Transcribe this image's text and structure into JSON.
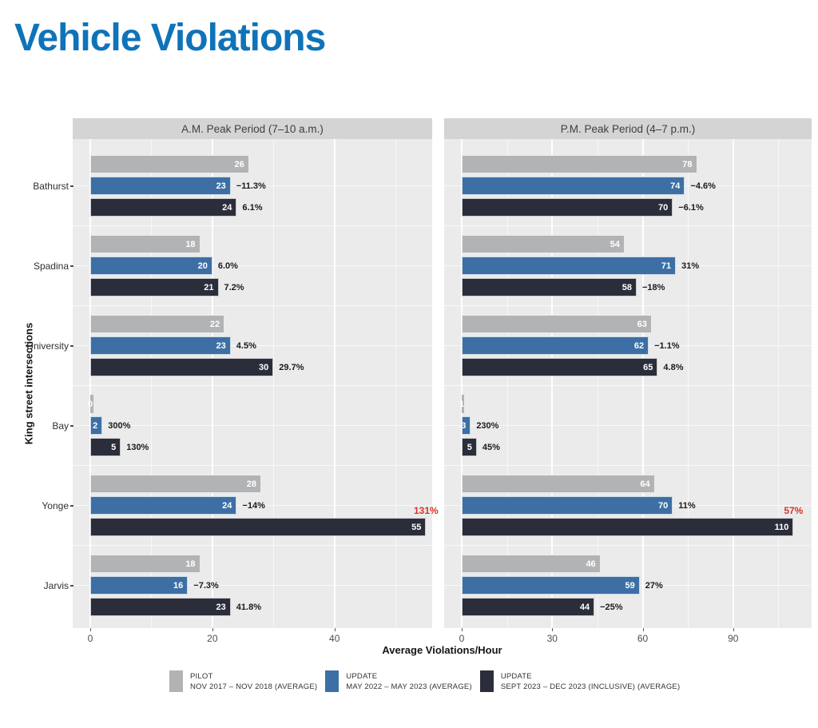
{
  "page": {
    "title": "Vehicle Violations"
  },
  "chart_data": {
    "type": "bar",
    "orientation": "horizontal",
    "title": "Vehicle Violations",
    "xlabel": "Average Violations/Hour",
    "ylabel": "King street intersections",
    "categories": [
      "Bathurst",
      "Spadina",
      "University",
      "Bay",
      "Yonge",
      "Jarvis"
    ],
    "series": [
      {
        "id": "pilot",
        "name": "PILOT",
        "period": "NOV 2017 – NOV 2018 (AVERAGE)",
        "color": "#b2b3b5"
      },
      {
        "id": "update-2022",
        "name": "UPDATE",
        "period": "MAY 2022 – MAY 2023 (AVERAGE)",
        "color": "#3d6fa5"
      },
      {
        "id": "update-2023",
        "name": "UPDATE",
        "period": "SEPT 2023 – DEC 2023 (INCLUSIVE) (AVERAGE)",
        "color": "#2b2e3a"
      }
    ],
    "colors": {
      "highlight": "#d7342c",
      "panel_header_bg": "#d4d4d4",
      "plot_bg": "#ebebeb",
      "gridline": "#ffffff",
      "title": "#0f73b9"
    },
    "panels": [
      {
        "title": "A.M. Peak Period (7–10 a.m.)",
        "axis_max": 56,
        "major_ticks": [
          0,
          20,
          40
        ],
        "minor_ticks": [
          10,
          30,
          50
        ],
        "rows": [
          {
            "category": "Bathurst",
            "bars": [
              {
                "value": 26,
                "label": "26"
              },
              {
                "value": 23,
                "label": "23",
                "pct": "−11.3%"
              },
              {
                "value": 24,
                "label": "24",
                "pct": "6.1%"
              }
            ]
          },
          {
            "category": "Spadina",
            "bars": [
              {
                "value": 18,
                "label": "18"
              },
              {
                "value": 20,
                "label": "20",
                "pct": "6.0%"
              },
              {
                "value": 21,
                "label": "21",
                "pct": "7.2%"
              }
            ]
          },
          {
            "category": "University",
            "bars": [
              {
                "value": 22,
                "label": "22"
              },
              {
                "value": 23,
                "label": "23",
                "pct": "4.5%"
              },
              {
                "value": 30,
                "label": "30",
                "pct": "29.7%"
              }
            ]
          },
          {
            "category": "Bay",
            "bars": [
              {
                "value": 0.5,
                "label": "0"
              },
              {
                "value": 2,
                "label": "2",
                "pct": "300%"
              },
              {
                "value": 5,
                "label": "5",
                "pct": "130%"
              }
            ]
          },
          {
            "category": "Yonge",
            "bars": [
              {
                "value": 28,
                "label": "28"
              },
              {
                "value": 24,
                "label": "24",
                "pct": "−14%"
              },
              {
                "value": 55,
                "label": "55",
                "pct": "131%",
                "pct_highlight": true
              }
            ]
          },
          {
            "category": "Jarvis",
            "bars": [
              {
                "value": 18,
                "label": "18"
              },
              {
                "value": 16,
                "label": "16",
                "pct": "−7.3%"
              },
              {
                "value": 23,
                "label": "23",
                "pct": "41.8%"
              }
            ]
          }
        ]
      },
      {
        "title": "P.M. Peak Period (4–7 p.m.)",
        "axis_max": 116,
        "major_ticks": [
          0,
          30,
          60,
          90
        ],
        "minor_ticks": [
          15,
          45,
          75,
          105
        ],
        "rows": [
          {
            "category": "Bathurst",
            "bars": [
              {
                "value": 78,
                "label": "78"
              },
              {
                "value": 74,
                "label": "74",
                "pct": "−4.6%"
              },
              {
                "value": 70,
                "label": "70",
                "pct": "−6.1%"
              }
            ]
          },
          {
            "category": "Spadina",
            "bars": [
              {
                "value": 54,
                "label": "54"
              },
              {
                "value": 71,
                "label": "71",
                "pct": "31%"
              },
              {
                "value": 58,
                "label": "58",
                "pct": "−18%"
              }
            ]
          },
          {
            "category": "University",
            "bars": [
              {
                "value": 63,
                "label": "63"
              },
              {
                "value": 62,
                "label": "62",
                "pct": "−1.1%"
              },
              {
                "value": 65,
                "label": "65",
                "pct": "4.8%"
              }
            ]
          },
          {
            "category": "Bay",
            "bars": [
              {
                "value": 0.9,
                "label": "1"
              },
              {
                "value": 3,
                "label": "3",
                "pct": "230%"
              },
              {
                "value": 5,
                "label": "5",
                "pct": "45%"
              }
            ]
          },
          {
            "category": "Yonge",
            "bars": [
              {
                "value": 64,
                "label": "64"
              },
              {
                "value": 70,
                "label": "70",
                "pct": "11%"
              },
              {
                "value": 110,
                "label": "110",
                "pct": "57%",
                "pct_highlight": true
              }
            ]
          },
          {
            "category": "Jarvis",
            "bars": [
              {
                "value": 46,
                "label": "46"
              },
              {
                "value": 59,
                "label": "59",
                "pct": "27%"
              },
              {
                "value": 44,
                "label": "44",
                "pct": "−25%"
              }
            ]
          }
        ]
      }
    ]
  }
}
